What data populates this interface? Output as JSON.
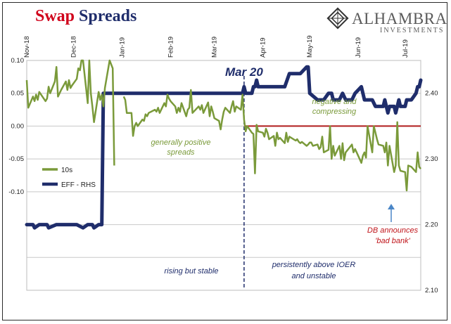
{
  "header": {
    "title_word1": "Swap",
    "title_word2": "Spreads",
    "logo_name": "ALHAMBRA",
    "logo_sub": "INVESTMENTS"
  },
  "colors": {
    "title_accent": "#d0021b",
    "title_navy": "#1f2d6b",
    "series_10s": "#7a9a3a",
    "series_eff": "#1f2d6b",
    "zero_line": "#b01c1c",
    "annotation_navy": "#1f2d6b",
    "annotation_green": "#7a9a3a",
    "annotation_red": "#c0151b",
    "arrow": "#4a86c7"
  },
  "chart_data": {
    "type": "line",
    "x_tick_labels": [
      "Nov-18",
      "Dec-18",
      "Jan-19",
      "Feb-19",
      "Mar-19",
      "Apr-19",
      "May-19",
      "Jun-19",
      "Jul-19"
    ],
    "x_tick_dates": [
      "2018-11-01",
      "2018-12-01",
      "2019-01-01",
      "2019-02-01",
      "2019-03-01",
      "2019-04-01",
      "2019-05-01",
      "2019-06-01",
      "2019-07-01"
    ],
    "x_range": [
      "2018-11-01",
      "2019-07-11"
    ],
    "left_axis": {
      "ticks": [
        "0.10",
        "0.05",
        "0.00",
        "-0.05",
        "-0.10"
      ],
      "range": [
        -0.25,
        0.1
      ]
    },
    "right_axis": {
      "ticks": [
        "2.40",
        "2.30",
        "2.20",
        "2.10"
      ],
      "range": [
        2.1,
        2.45
      ]
    },
    "grid": true,
    "legend_position": "left-middle",
    "series": [
      {
        "name": "10s",
        "axis": "left",
        "points": [
          [
            "2018-11-01",
            0.07
          ],
          [
            "2018-11-02",
            0.028
          ],
          [
            "2018-11-05",
            0.045
          ],
          [
            "2018-11-06",
            0.038
          ],
          [
            "2018-11-07",
            0.048
          ],
          [
            "2018-11-08",
            0.04
          ],
          [
            "2018-11-09",
            0.052
          ],
          [
            "2018-11-13",
            0.038
          ],
          [
            "2018-11-14",
            0.042
          ],
          [
            "2018-11-15",
            0.06
          ],
          [
            "2018-11-16",
            0.05
          ],
          [
            "2018-11-19",
            0.068
          ],
          [
            "2018-11-20",
            0.09
          ],
          [
            "2018-11-21",
            0.045
          ],
          [
            "2018-11-23",
            0.055
          ],
          [
            "2018-11-26",
            0.068
          ],
          [
            "2018-11-27",
            0.055
          ],
          [
            "2018-11-28",
            0.07
          ],
          [
            "2018-11-29",
            0.058
          ],
          [
            "2018-11-30",
            0.062
          ],
          [
            "2018-12-03",
            0.072
          ],
          [
            "2018-12-04",
            0.088
          ],
          [
            "2018-12-05",
            0.085
          ],
          [
            "2018-12-06",
            0.1
          ],
          [
            "2018-12-07",
            0.1
          ],
          [
            "2018-12-10",
            0.035
          ],
          [
            "2018-12-11",
            0.1
          ],
          [
            "2018-12-12",
            0.05
          ],
          [
            "2018-12-13",
            0.03
          ],
          [
            "2018-12-14",
            0.006
          ],
          [
            "2018-12-17",
            0.052
          ],
          [
            "2018-12-18",
            0.04
          ],
          [
            "2018-12-19",
            0.048
          ],
          [
            "2018-12-20",
            0.03
          ],
          [
            "2018-12-21",
            0.058
          ],
          [
            "2018-12-24",
            0.1
          ],
          [
            "2018-12-26",
            0.088
          ],
          [
            "2018-12-27",
            -0.06
          ],
          [
            "2019-01-02",
            0.045
          ],
          [
            "2019-01-03",
            0.04
          ],
          [
            "2019-01-04",
            0.02
          ],
          [
            "2019-01-07",
            0.02
          ],
          [
            "2019-01-08",
            -0.015
          ],
          [
            "2019-01-09",
            0.0
          ],
          [
            "2019-01-10",
            0.005
          ],
          [
            "2019-01-11",
            0.0
          ],
          [
            "2019-01-14",
            0.01
          ],
          [
            "2019-01-15",
            0.008
          ],
          [
            "2019-01-16",
            0.018
          ],
          [
            "2019-01-17",
            0.015
          ],
          [
            "2019-01-18",
            0.02
          ],
          [
            "2019-01-22",
            0.025
          ],
          [
            "2019-01-23",
            0.022
          ],
          [
            "2019-01-24",
            0.028
          ],
          [
            "2019-01-25",
            0.02
          ],
          [
            "2019-01-28",
            0.035
          ],
          [
            "2019-01-29",
            0.03
          ],
          [
            "2019-01-30",
            0.048
          ],
          [
            "2019-01-31",
            0.042
          ],
          [
            "2019-02-01",
            0.038
          ],
          [
            "2019-02-04",
            0.03
          ],
          [
            "2019-02-05",
            0.02
          ],
          [
            "2019-02-06",
            0.028
          ],
          [
            "2019-02-07",
            0.022
          ],
          [
            "2019-02-08",
            0.035
          ],
          [
            "2019-02-11",
            0.015
          ],
          [
            "2019-02-12",
            0.025
          ],
          [
            "2019-02-13",
            0.028
          ],
          [
            "2019-02-14",
            0.055
          ],
          [
            "2019-02-15",
            0.02
          ],
          [
            "2019-02-19",
            0.03
          ],
          [
            "2019-02-20",
            0.025
          ],
          [
            "2019-02-21",
            0.032
          ],
          [
            "2019-02-22",
            0.02
          ],
          [
            "2019-02-25",
            0.036
          ],
          [
            "2019-02-26",
            0.015
          ],
          [
            "2019-02-27",
            0.03
          ],
          [
            "2019-02-28",
            0.022
          ],
          [
            "2019-03-01",
            0.012
          ],
          [
            "2019-03-04",
            0.008
          ],
          [
            "2019-03-05",
            -0.005
          ],
          [
            "2019-03-06",
            0.01
          ],
          [
            "2019-03-07",
            0.022
          ],
          [
            "2019-03-08",
            0.028
          ],
          [
            "2019-03-11",
            0.02
          ],
          [
            "2019-03-12",
            0.03
          ],
          [
            "2019-03-13",
            0.038
          ],
          [
            "2019-03-14",
            0.022
          ],
          [
            "2019-03-15",
            0.03
          ],
          [
            "2019-03-18",
            0.025
          ],
          [
            "2019-03-19",
            0.048
          ],
          [
            "2019-03-20",
            0.01
          ],
          [
            "2019-03-21",
            -0.008
          ],
          [
            "2019-03-22",
            0.0
          ],
          [
            "2019-03-25",
            -0.01
          ],
          [
            "2019-03-26",
            -0.012
          ],
          [
            "2019-03-27",
            -0.072
          ],
          [
            "2019-03-28",
            0.002
          ],
          [
            "2019-03-29",
            -0.008
          ],
          [
            "2019-04-01",
            -0.01
          ],
          [
            "2019-04-02",
            -0.016
          ],
          [
            "2019-04-03",
            -0.004
          ],
          [
            "2019-04-04",
            -0.01
          ],
          [
            "2019-04-05",
            -0.02
          ],
          [
            "2019-04-08",
            -0.015
          ],
          [
            "2019-04-09",
            -0.03
          ],
          [
            "2019-04-10",
            -0.01
          ],
          [
            "2019-04-11",
            -0.02
          ],
          [
            "2019-04-12",
            -0.018
          ],
          [
            "2019-04-15",
            -0.026
          ],
          [
            "2019-04-16",
            -0.01
          ],
          [
            "2019-04-17",
            -0.024
          ],
          [
            "2019-04-18",
            -0.016
          ],
          [
            "2019-04-22",
            -0.022
          ],
          [
            "2019-04-23",
            -0.02
          ],
          [
            "2019-04-24",
            -0.024
          ],
          [
            "2019-04-25",
            -0.026
          ],
          [
            "2019-04-26",
            -0.024
          ],
          [
            "2019-04-29",
            -0.03
          ],
          [
            "2019-04-30",
            -0.028
          ],
          [
            "2019-05-01",
            -0.025
          ],
          [
            "2019-05-02",
            -0.025
          ],
          [
            "2019-05-03",
            -0.03
          ],
          [
            "2019-05-06",
            -0.028
          ],
          [
            "2019-05-07",
            -0.035
          ],
          [
            "2019-05-08",
            -0.032
          ],
          [
            "2019-05-09",
            -0.016
          ],
          [
            "2019-05-10",
            -0.04
          ],
          [
            "2019-05-13",
            -0.036
          ],
          [
            "2019-05-14",
            0.0
          ],
          [
            "2019-05-15",
            -0.05
          ],
          [
            "2019-05-16",
            -0.03
          ],
          [
            "2019-05-17",
            -0.045
          ],
          [
            "2019-05-20",
            -0.03
          ],
          [
            "2019-05-21",
            -0.05
          ],
          [
            "2019-05-22",
            -0.026
          ],
          [
            "2019-05-23",
            -0.052
          ],
          [
            "2019-05-24",
            -0.04
          ],
          [
            "2019-05-28",
            -0.028
          ],
          [
            "2019-05-29",
            -0.04
          ],
          [
            "2019-05-30",
            -0.035
          ],
          [
            "2019-05-31",
            -0.04
          ],
          [
            "2019-06-03",
            -0.056
          ],
          [
            "2019-06-04",
            -0.045
          ],
          [
            "2019-06-05",
            -0.04
          ],
          [
            "2019-06-06",
            -0.048
          ],
          [
            "2019-06-07",
            0.0
          ],
          [
            "2019-06-10",
            -0.04
          ],
          [
            "2019-06-11",
            0.0
          ],
          [
            "2019-06-12",
            -0.01
          ],
          [
            "2019-06-13",
            -0.02
          ],
          [
            "2019-06-14",
            -0.028
          ],
          [
            "2019-06-17",
            -0.03
          ],
          [
            "2019-06-18",
            -0.04
          ],
          [
            "2019-06-19",
            -0.025
          ],
          [
            "2019-06-20",
            -0.06
          ],
          [
            "2019-06-21",
            -0.03
          ],
          [
            "2019-06-24",
            -0.07
          ],
          [
            "2019-06-25",
            -0.06
          ],
          [
            "2019-06-26",
            0.006
          ],
          [
            "2019-06-27",
            -0.06
          ],
          [
            "2019-06-28",
            -0.068
          ],
          [
            "2019-07-01",
            -0.07
          ],
          [
            "2019-07-02",
            -0.098
          ],
          [
            "2019-07-03",
            -0.06
          ],
          [
            "2019-07-05",
            -0.062
          ],
          [
            "2019-07-08",
            -0.07
          ],
          [
            "2019-07-09",
            -0.04
          ],
          [
            "2019-07-10",
            -0.062
          ],
          [
            "2019-07-11",
            -0.065
          ]
        ]
      },
      {
        "name": "EFF - RHS",
        "axis": "right",
        "points": [
          [
            "2018-11-01",
            2.2
          ],
          [
            "2018-11-05",
            2.2
          ],
          [
            "2018-11-06",
            2.195
          ],
          [
            "2018-11-09",
            2.2
          ],
          [
            "2018-11-14",
            2.2
          ],
          [
            "2018-11-15",
            2.195
          ],
          [
            "2018-11-20",
            2.2
          ],
          [
            "2018-11-27",
            2.2
          ],
          [
            "2018-12-03",
            2.2
          ],
          [
            "2018-12-07",
            2.195
          ],
          [
            "2018-12-10",
            2.2
          ],
          [
            "2018-12-13",
            2.2
          ],
          [
            "2018-12-14",
            2.195
          ],
          [
            "2018-12-17",
            2.2
          ],
          [
            "2018-12-19",
            2.2
          ],
          [
            "2018-12-20",
            2.4
          ],
          [
            "2018-12-31",
            2.4
          ],
          [
            "2019-01-15",
            2.4
          ],
          [
            "2019-02-01",
            2.4
          ],
          [
            "2019-02-15",
            2.4
          ],
          [
            "2019-03-01",
            2.4
          ],
          [
            "2019-03-15",
            2.4
          ],
          [
            "2019-03-19",
            2.4
          ],
          [
            "2019-03-20",
            2.41
          ],
          [
            "2019-03-21",
            2.4
          ],
          [
            "2019-03-22",
            2.4
          ],
          [
            "2019-03-25",
            2.4
          ],
          [
            "2019-03-26",
            2.41
          ],
          [
            "2019-03-27",
            2.41
          ],
          [
            "2019-03-28",
            2.42
          ],
          [
            "2019-03-29",
            2.41
          ],
          [
            "2019-04-01",
            2.41
          ],
          [
            "2019-04-12",
            2.41
          ],
          [
            "2019-04-15",
            2.41
          ],
          [
            "2019-04-18",
            2.43
          ],
          [
            "2019-04-25",
            2.43
          ],
          [
            "2019-04-29",
            2.44
          ],
          [
            "2019-04-30",
            2.44
          ],
          [
            "2019-05-01",
            2.4
          ],
          [
            "2019-05-06",
            2.39
          ],
          [
            "2019-05-10",
            2.39
          ],
          [
            "2019-05-13",
            2.4
          ],
          [
            "2019-05-15",
            2.4
          ],
          [
            "2019-05-16",
            2.39
          ],
          [
            "2019-05-20",
            2.39
          ],
          [
            "2019-05-22",
            2.4
          ],
          [
            "2019-05-24",
            2.39
          ],
          [
            "2019-05-28",
            2.39
          ],
          [
            "2019-05-30",
            2.4
          ],
          [
            "2019-06-03",
            2.41
          ],
          [
            "2019-06-05",
            2.39
          ],
          [
            "2019-06-07",
            2.39
          ],
          [
            "2019-06-10",
            2.39
          ],
          [
            "2019-06-12",
            2.38
          ],
          [
            "2019-06-14",
            2.38
          ],
          [
            "2019-06-17",
            2.38
          ],
          [
            "2019-06-18",
            2.39
          ],
          [
            "2019-06-19",
            2.38
          ],
          [
            "2019-06-20",
            2.37
          ],
          [
            "2019-06-21",
            2.38
          ],
          [
            "2019-06-24",
            2.38
          ],
          [
            "2019-06-25",
            2.37
          ],
          [
            "2019-06-26",
            2.38
          ],
          [
            "2019-06-27",
            2.39
          ],
          [
            "2019-06-28",
            2.38
          ],
          [
            "2019-07-01",
            2.38
          ],
          [
            "2019-07-02",
            2.39
          ],
          [
            "2019-07-03",
            2.39
          ],
          [
            "2019-07-05",
            2.39
          ],
          [
            "2019-07-08",
            2.4
          ],
          [
            "2019-07-09",
            2.41
          ],
          [
            "2019-07-10",
            2.41
          ],
          [
            "2019-07-11",
            2.42
          ]
        ]
      }
    ],
    "reference_lines": [
      {
        "type": "horizontal",
        "axis": "left",
        "value": 0.0
      },
      {
        "type": "vertical",
        "date": "2019-03-20",
        "label": "Mar 20"
      }
    ],
    "annotations": [
      {
        "id": "mar20",
        "text": "Mar 20",
        "color": "navy"
      },
      {
        "id": "gen_pos_1",
        "text": "generally positive",
        "color": "green"
      },
      {
        "id": "gen_pos_2",
        "text": "spreads",
        "color": "green"
      },
      {
        "id": "neg_1",
        "text": "negative and",
        "color": "green"
      },
      {
        "id": "neg_2",
        "text": "compressing",
        "color": "green"
      },
      {
        "id": "rising",
        "text": "rising but stable",
        "color": "navy"
      },
      {
        "id": "persist_1",
        "text": "persistently above IOER",
        "color": "navy"
      },
      {
        "id": "persist_2",
        "text": "and unstable",
        "color": "navy"
      },
      {
        "id": "db_1",
        "text": "DB announces",
        "color": "red"
      },
      {
        "id": "db_2",
        "text": "'bad bank'",
        "color": "red"
      }
    ]
  }
}
